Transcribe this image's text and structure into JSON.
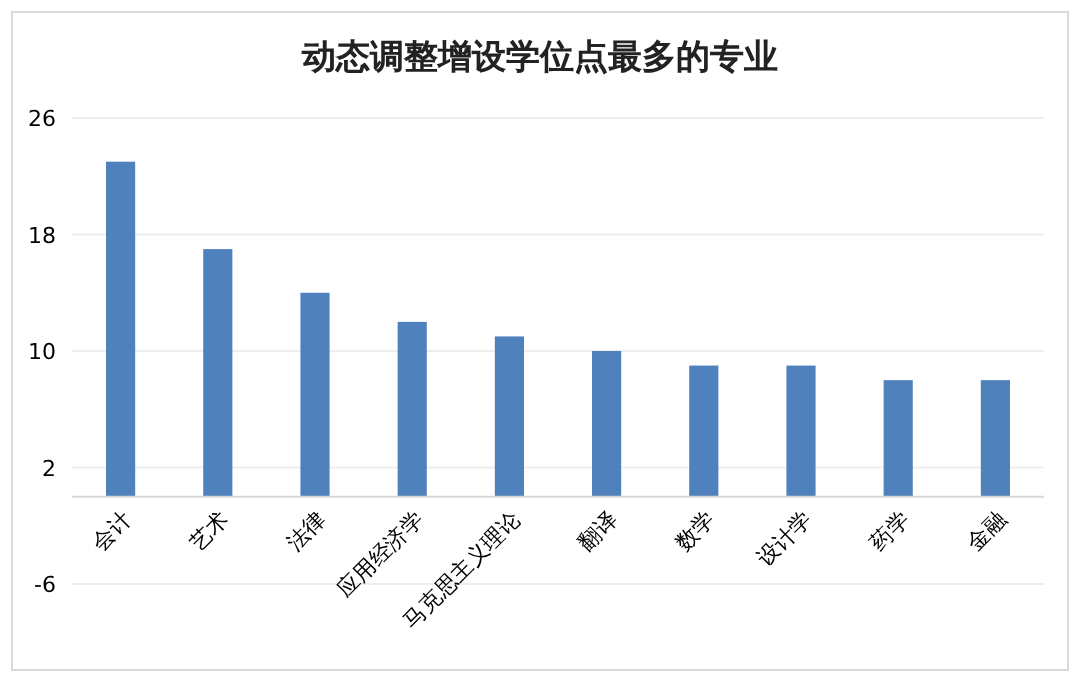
{
  "chart_data": {
    "type": "bar",
    "title": "动态调整增设学位点最多的专业",
    "categories": [
      "会计",
      "艺术",
      "法律",
      "应用经济学",
      "马克思主义理论",
      "翻译",
      "数学",
      "设计学",
      "药学",
      "金融"
    ],
    "series": [
      {
        "color": "#4f81bd",
        "values": [
          23,
          17,
          14,
          12,
          11,
          10,
          9,
          9,
          8,
          8
        ]
      }
    ],
    "ylim": [
      -6,
      26
    ],
    "yticks": [
      -6,
      2,
      10,
      18,
      26
    ],
    "grid": "y"
  }
}
